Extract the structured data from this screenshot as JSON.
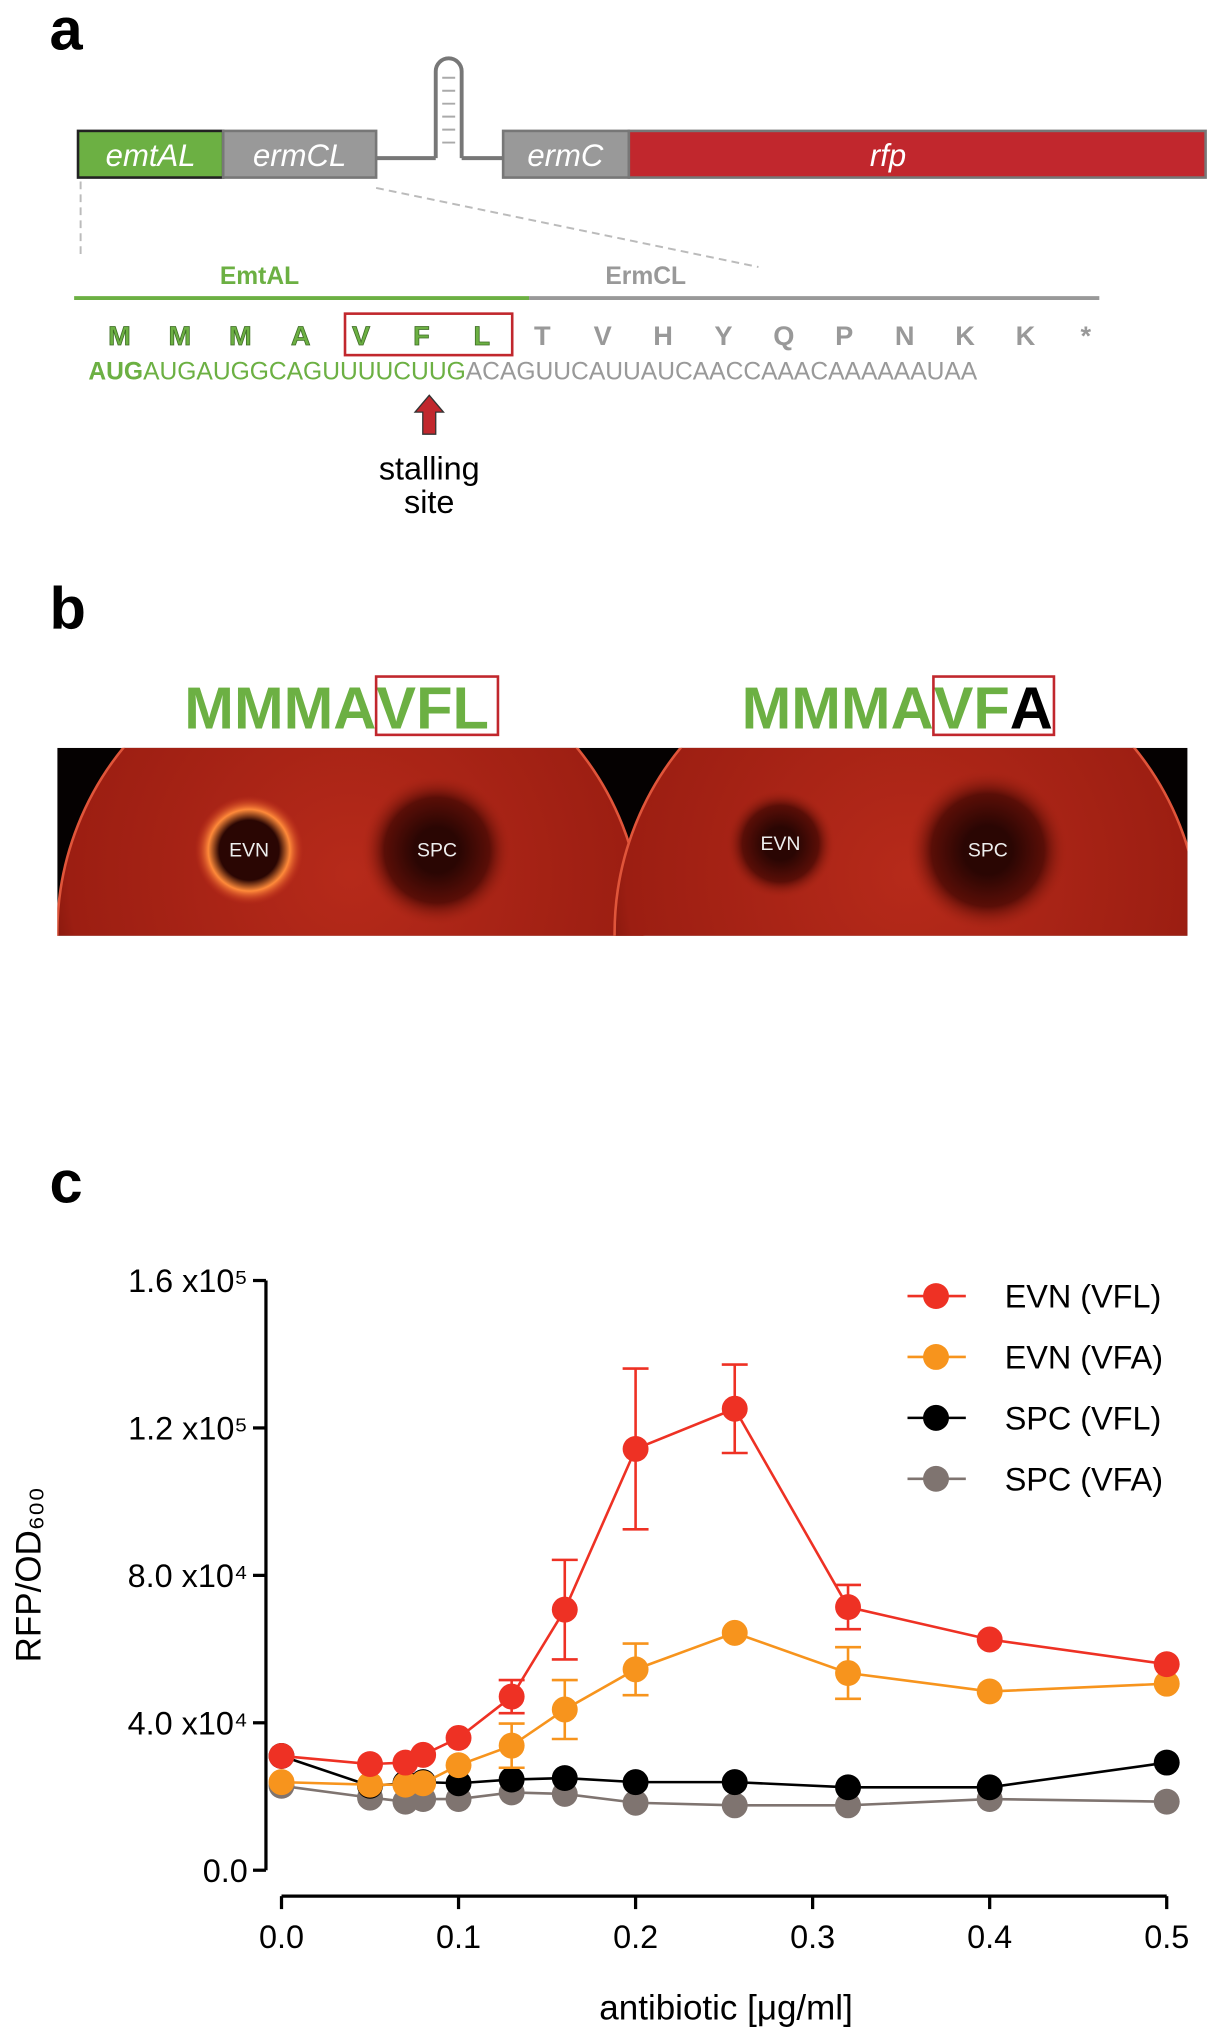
{
  "panel_a": {
    "label": "a",
    "genes": [
      "emtAL",
      "ermCL",
      "ermC",
      "rfp"
    ],
    "peptides": [
      "EmtAL",
      "ErmCL"
    ],
    "residues": [
      "M",
      "M",
      "M",
      "A",
      "V",
      "F",
      "L",
      "T",
      "V",
      "H",
      "Y",
      "Q",
      "P",
      "N",
      "K",
      "K",
      "*"
    ],
    "sequence": [
      "AUG",
      "AUGAUGGCAGUUUUCUUG",
      "ACAGUUCAUUAUCAACCAAACAAAAAAUAA"
    ],
    "annotation": [
      "stalling",
      "site"
    ]
  },
  "panel_b": {
    "label": "b",
    "constructs": [
      [
        "MMMA",
        "VFL"
      ],
      [
        "MMMA",
        "VF",
        "A"
      ]
    ],
    "discs": [
      "EVN",
      "SPC",
      "EVN",
      "SPC"
    ]
  },
  "panel_c": {
    "label": "c"
  },
  "chart_data": {
    "type": "line",
    "xlabel": "antibiotic [μg/ml]",
    "ylabel": "RFP/OD₆₀₀",
    "x": [
      0,
      0.05,
      0.07,
      0.08,
      0.1,
      0.13,
      0.16,
      0.2,
      0.256,
      0.32,
      0.4,
      0.5
    ],
    "xlim": [
      0,
      0.5
    ],
    "xticks": [
      {
        "value": 0,
        "label": "0.0"
      },
      0.1,
      0.2,
      0.3,
      0.4,
      0.5
    ],
    "ylim": [
      0,
      160000
    ],
    "yticks": [
      {
        "value": 0,
        "label": "0.0"
      },
      {
        "value": 40000,
        "label": "4.0 x10⁴"
      },
      {
        "value": 80000,
        "label": "8.0 x10⁴"
      },
      {
        "value": 120000,
        "label": "1.2 x10⁵"
      },
      {
        "value": 160000,
        "label": "1.6 x10⁵"
      }
    ],
    "legend": "upper right",
    "series": [
      {
        "name": "EVN (VFL)",
        "color": "#ee3124",
        "values": [
          31000,
          28800,
          29200,
          31300,
          35900,
          47100,
          70700,
          114300,
          125200,
          71400,
          62600,
          55900
        ],
        "errors": [
          null,
          null,
          null,
          null,
          null,
          4500,
          13500,
          21800,
          12000,
          6000,
          null,
          null
        ]
      },
      {
        "name": "EVN (VFA)",
        "color": "#f7941d",
        "values": [
          23900,
          23200,
          23200,
          23600,
          28500,
          33800,
          43600,
          54500,
          64400,
          53500,
          48500,
          50600
        ],
        "errors": [
          null,
          null,
          null,
          null,
          null,
          6000,
          8000,
          7000,
          null,
          7000,
          null,
          null
        ]
      },
      {
        "name": "SPC (VFL)",
        "color": "#000000",
        "values": [
          31000,
          22900,
          23600,
          23900,
          23600,
          24600,
          25000,
          23900,
          23900,
          22500,
          22500,
          29200
        ]
      },
      {
        "name": "SPC (VFA)",
        "color": "#7f7470",
        "values": [
          22900,
          19700,
          18600,
          19300,
          19300,
          21100,
          20700,
          18300,
          17600,
          17600,
          19300,
          18600
        ]
      }
    ]
  }
}
